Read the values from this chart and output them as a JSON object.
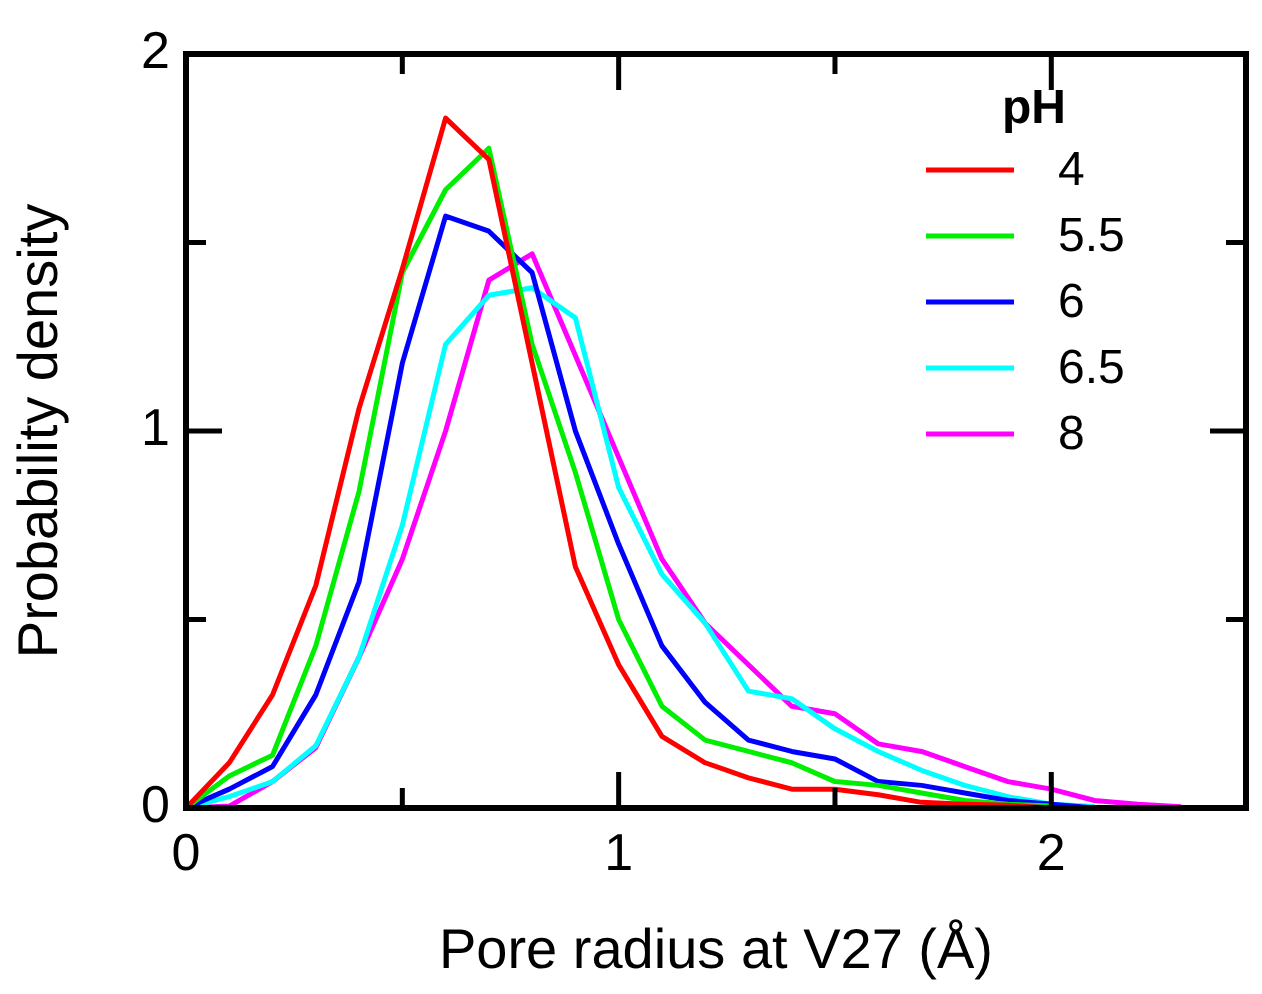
{
  "chart_data": {
    "type": "line",
    "xlabel": "Pore radius at V27 (Å)",
    "ylabel": "Probability density",
    "legend_title": "pH",
    "legend": "top right",
    "marker": "none",
    "line_style": "solid",
    "grid": false,
    "x": [
      0,
      0.1,
      0.2,
      0.3,
      0.4,
      0.5,
      0.6,
      0.7,
      0.8,
      0.9,
      1.0,
      1.1,
      1.2,
      1.3,
      1.4,
      1.5,
      1.6,
      1.7,
      1.8,
      1.9,
      2.0,
      2.1,
      2.2,
      2.3
    ],
    "xlim": [
      0,
      2.45
    ],
    "xticks": [
      0,
      {
        "value": 0.5,
        "label": null
      },
      1,
      {
        "value": 1.5,
        "label": null
      },
      2
    ],
    "ylim": [
      0,
      2
    ],
    "yticks": [
      0,
      {
        "value": 0.5,
        "label": null
      },
      1,
      {
        "value": 1.5,
        "label": null
      },
      2
    ],
    "series": [
      {
        "name": "4",
        "color": "#ff0000",
        "values": [
          0,
          0.12,
          0.3,
          0.59,
          1.06,
          1.43,
          1.83,
          1.72,
          1.18,
          0.64,
          0.38,
          0.19,
          0.12,
          0.08,
          0.05,
          0.05,
          0.035,
          0.015,
          0.01,
          0.007,
          0,
          null,
          null,
          null
        ]
      },
      {
        "name": "5.5",
        "color": "#00ee00",
        "values": [
          0,
          0.085,
          0.14,
          0.43,
          0.84,
          1.42,
          1.64,
          1.75,
          1.23,
          0.89,
          0.5,
          0.27,
          0.18,
          0.15,
          0.12,
          0.07,
          0.06,
          0.04,
          0.02,
          0.01,
          0.005,
          null,
          null,
          null
        ]
      },
      {
        "name": "6",
        "color": "#0000ff",
        "values": [
          0,
          0.05,
          0.11,
          0.3,
          0.6,
          1.18,
          1.57,
          1.53,
          1.42,
          1.0,
          0.7,
          0.43,
          0.28,
          0.18,
          0.15,
          0.13,
          0.07,
          0.06,
          0.04,
          0.02,
          0.01,
          0,
          null,
          null
        ]
      },
      {
        "name": "6.5",
        "color": "#00ffff",
        "values": [
          0,
          0.03,
          0.07,
          0.165,
          0.4,
          0.75,
          1.23,
          1.36,
          1.38,
          1.3,
          0.85,
          0.62,
          0.49,
          0.31,
          0.29,
          0.21,
          0.15,
          0.1,
          0.06,
          0.03,
          0.01,
          0.004,
          null,
          null
        ]
      },
      {
        "name": "8",
        "color": "#ff00ff",
        "values": [
          0,
          0.005,
          0.07,
          0.16,
          0.4,
          0.66,
          1.0,
          1.4,
          1.47,
          1.2,
          0.93,
          0.66,
          0.49,
          0.38,
          0.27,
          0.25,
          0.17,
          0.15,
          0.11,
          0.07,
          0.05,
          0.02,
          0.01,
          0.003
        ]
      }
    ]
  }
}
